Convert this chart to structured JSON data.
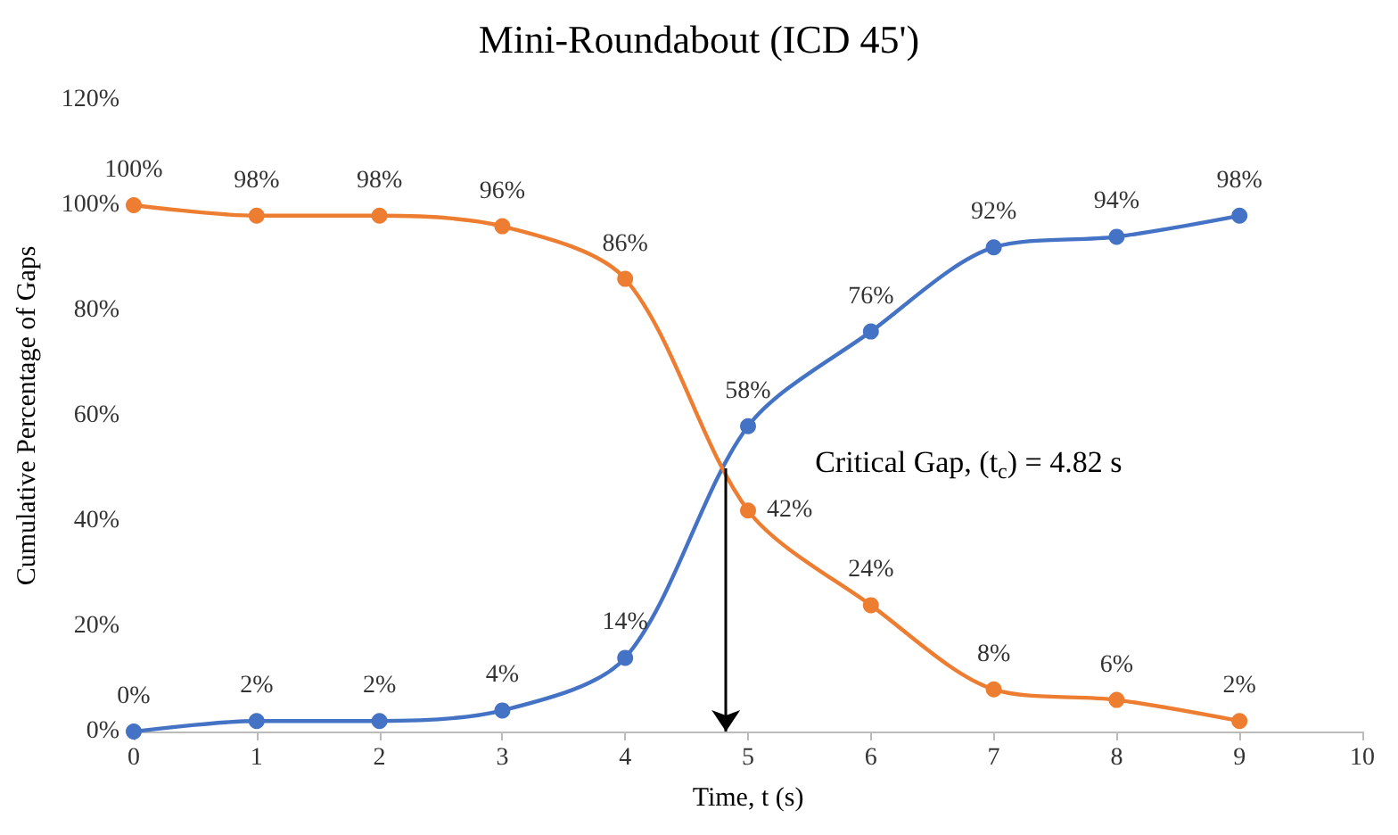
{
  "chart_data": {
    "type": "line",
    "title": "Mini-Roundabout (ICD 45')",
    "xlabel": "Time, t (s)",
    "ylabel": "Cumulative Percentage of Gaps",
    "x": [
      0,
      1,
      2,
      3,
      4,
      5,
      6,
      7,
      8,
      9
    ],
    "series": [
      {
        "color": "#4472c4",
        "values": [
          0,
          2,
          2,
          4,
          14,
          58,
          76,
          92,
          94,
          98
        ],
        "value_labels": [
          "0%",
          "2%",
          "2%",
          "4%",
          "14%",
          "58%",
          "76%",
          "92%",
          "94%",
          "98%"
        ]
      },
      {
        "color": "#ed7d31",
        "values": [
          100,
          98,
          98,
          96,
          86,
          42,
          24,
          8,
          6,
          2
        ],
        "value_labels": [
          "100%",
          "98%",
          "98%",
          "96%",
          "86%",
          "42%",
          "24%",
          "8%",
          "6%",
          "2%"
        ]
      }
    ],
    "xlim": [
      0,
      10
    ],
    "xticks": [
      0,
      1,
      2,
      3,
      4,
      5,
      6,
      7,
      8,
      9,
      10
    ],
    "ylim": [
      0,
      120
    ],
    "yticks": [
      {
        "value": 0,
        "label": "0%"
      },
      {
        "value": 20,
        "label": "20%"
      },
      {
        "value": 40,
        "label": "40%"
      },
      {
        "value": 60,
        "label": "60%"
      },
      {
        "value": 80,
        "label": "80%"
      },
      {
        "value": 100,
        "label": "100%"
      },
      {
        "value": 120,
        "label": "120%"
      }
    ],
    "annotations": [
      {
        "text": "Critical Gap, (t$_{c}$) = 4.82 s",
        "x": 4.82,
        "y": 50
      }
    ],
    "marker": "circle",
    "grid": false
  }
}
